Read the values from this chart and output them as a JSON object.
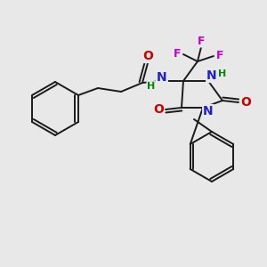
{
  "background_color": "#e8e8e8",
  "bond_color": "#1a1a1a",
  "N_color": "#2020cc",
  "O_color": "#cc0000",
  "F_color": "#cc00cc",
  "H_color": "#008800",
  "figsize": [
    3.0,
    3.0
  ],
  "dpi": 100,
  "xlim": [
    0,
    300
  ],
  "ylim": [
    0,
    300
  ]
}
